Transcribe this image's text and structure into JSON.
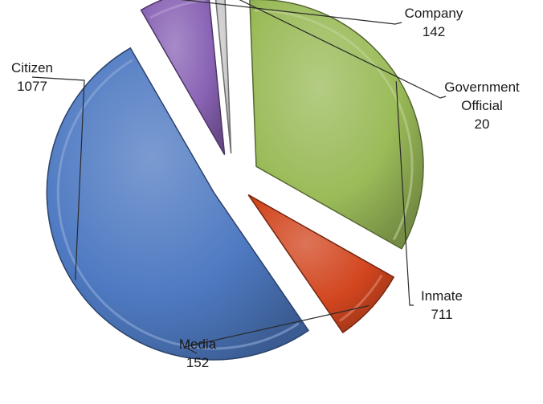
{
  "chart_data": {
    "type": "pie",
    "title": "",
    "exploded": true,
    "shading": "3d-bevel",
    "legend": "none",
    "slices": [
      {
        "label": "Company",
        "value": 142,
        "color": "#8a63b5",
        "value_label": "142"
      },
      {
        "label": "Government Official",
        "value": 20,
        "color": "#c8c8c8",
        "value_label": "20"
      },
      {
        "label": "Inmate",
        "value": 711,
        "color": "#9bbb59",
        "value_label": "711"
      },
      {
        "label": "Media",
        "value": 152,
        "color": "#d2461f",
        "value_label": "152"
      },
      {
        "label": "Citizen",
        "value": 1077,
        "color": "#4f7ac2",
        "value_label": "1077"
      }
    ]
  }
}
